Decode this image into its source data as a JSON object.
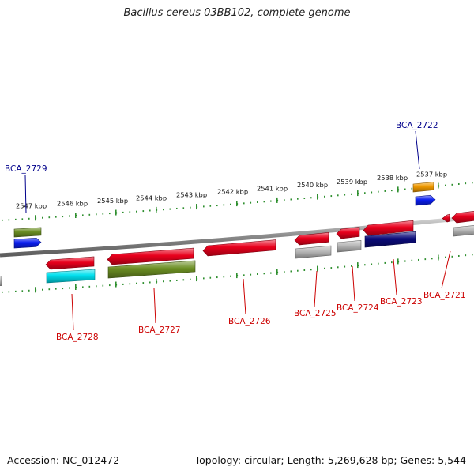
{
  "title": "Bacillus cereus 03BB102, complete genome",
  "accession": "Accession: NC_012472",
  "summary": "Topology: circular; Length: 5,269,628 bp; Genes: 5,544",
  "colors": {
    "background": "#ffffff",
    "backbone": "#8a8a8a",
    "tick": "#2f8f2f",
    "upper_label": "#00008b",
    "lower_label": "#cc0000",
    "red": "#e8001c",
    "olive": "#6b8e23",
    "blue": "#0a1ef0",
    "cyan": "#00e0ee",
    "grey": "#b8b8b8",
    "navy": "#0b0b7a",
    "orange": "#f09a00"
  },
  "scale": {
    "unit": "kbp",
    "labels": [
      "2547 kbp",
      "2546 kbp",
      "2545 kbp",
      "2544 kbp",
      "2543 kbp",
      "2542 kbp",
      "2541 kbp",
      "2540 kbp",
      "2539 kbp",
      "2538 kbp",
      "2537 kbp"
    ]
  },
  "genes": [
    {
      "label": "BCA_2729",
      "strand": "upper"
    },
    {
      "label": "BCA_2722",
      "strand": "upper"
    },
    {
      "label": "BCA_2728",
      "strand": "lower"
    },
    {
      "label": "BCA_2727",
      "strand": "lower"
    },
    {
      "label": "BCA_2726",
      "strand": "lower"
    },
    {
      "label": "BCA_2725",
      "strand": "lower"
    },
    {
      "label": "BCA_2724",
      "strand": "lower"
    },
    {
      "label": "BCA_2723",
      "strand": "lower"
    },
    {
      "label": "BCA_2721",
      "strand": "lower"
    }
  ]
}
